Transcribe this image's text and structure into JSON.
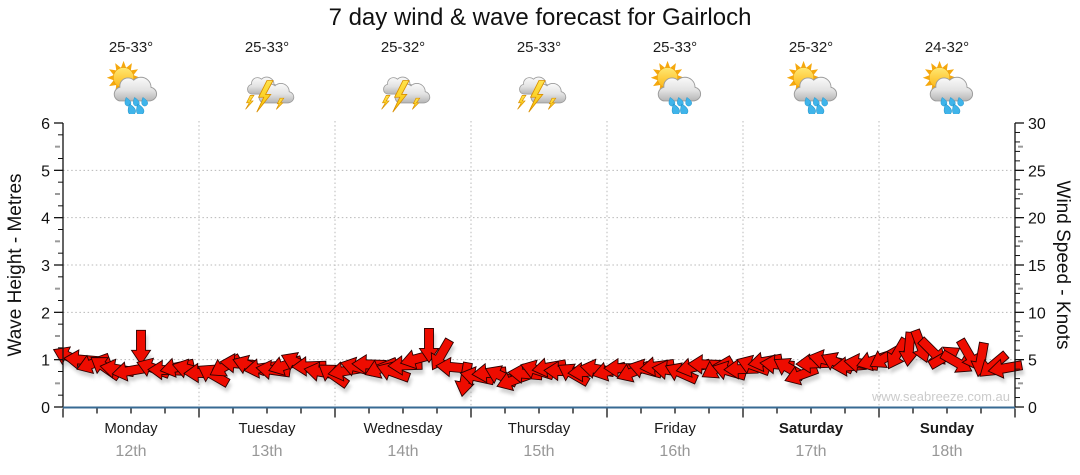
{
  "title": "7 day wind & wave forecast for Gairloch",
  "watermark": "www.seabreeze.com.au",
  "axes": {
    "left_label": "Wave Height - Metres",
    "right_label": "Wind Speed - Knots"
  },
  "forecast": {
    "days": [
      {
        "name": "Monday",
        "date": "12th",
        "temp": "25-33°",
        "icon": "sun-cloud-rain-icon",
        "icon_ref": "#sym-sun-cloud-rain",
        "name_class": "day-name"
      },
      {
        "name": "Tuesday",
        "date": "13th",
        "temp": "25-33°",
        "icon": "thunderstorm-icon",
        "icon_ref": "#sym-thunderstorm",
        "name_class": "day-name"
      },
      {
        "name": "Wednesday",
        "date": "14th",
        "temp": "25-32°",
        "icon": "thunderstorm-icon",
        "icon_ref": "#sym-thunderstorm",
        "name_class": "day-name"
      },
      {
        "name": "Thursday",
        "date": "15th",
        "temp": "25-33°",
        "icon": "thunderstorm-icon",
        "icon_ref": "#sym-thunderstorm",
        "name_class": "day-name"
      },
      {
        "name": "Friday",
        "date": "16th",
        "temp": "25-33°",
        "icon": "sun-cloud-rain-icon",
        "icon_ref": "#sym-sun-cloud-rain",
        "name_class": "day-name"
      },
      {
        "name": "Saturday",
        "date": "17th",
        "temp": "25-32°",
        "icon": "sun-cloud-rain-icon",
        "icon_ref": "#sym-sun-cloud-rain",
        "name_class": "day-name weekend"
      },
      {
        "name": "Sunday",
        "date": "18th",
        "temp": "24-32°",
        "icon": "sun-cloud-rain-icon",
        "icon_ref": "#sym-sun-cloud-rain",
        "name_class": "day-name weekend"
      }
    ]
  },
  "chart_data": {
    "type": "wind-arrow-series",
    "title": "7 day wind & wave forecast for Gairloch",
    "categories": [
      "Monday 12th",
      "Tuesday 13th",
      "Wednesday 14th",
      "Thursday 15th",
      "Friday 16th",
      "Saturday 17th",
      "Sunday 18th"
    ],
    "left_axis": {
      "label": "Wave Height - Metres",
      "min": 0,
      "max": 6,
      "ticks": [
        0,
        1,
        2,
        3,
        4,
        5,
        6
      ],
      "unit": "m"
    },
    "right_axis": {
      "label": "Wind Speed - Knots",
      "min": 0,
      "max": 30,
      "ticks": [
        0,
        5,
        10,
        15,
        20,
        25,
        30
      ],
      "unit": "kn"
    },
    "grid": true,
    "legend": false,
    "wind_arrows": {
      "points_per_day": 11.3,
      "speed_knots": [
        5.3,
        5.0,
        4.6,
        4.2,
        4.0,
        3.8,
        6.3,
        4.1,
        3.9,
        4.2,
        4.0,
        3.6,
        3.4,
        4.3,
        4.6,
        4.4,
        4.1,
        3.9,
        4.4,
        4.7,
        4.3,
        3.7,
        3.4,
        3.8,
        4.2,
        4.5,
        4.1,
        3.7,
        4.4,
        5.1,
        6.5,
        5.5,
        4.2,
        2.9,
        3.2,
        3.6,
        3.3,
        2.8,
        3.5,
        3.9,
        4.2,
        3.8,
        3.5,
        3.7,
        4.0,
        3.8,
        4.1,
        3.7,
        4.0,
        4.3,
        3.9,
        3.6,
        4.2,
        4.5,
        4.1,
        3.8,
        4.0,
        4.4,
        4.8,
        4.5,
        4.1,
        3.4,
        4.6,
        5.0,
        4.7,
        4.3,
        4.6,
        4.9,
        5.2,
        5.6,
        6.1,
        6.4,
        5.8,
        5.3,
        4.7,
        5.5,
        5.0,
        4.4,
        4.1
      ],
      "direction_deg": [
        205,
        185,
        160,
        215,
        190,
        170,
        90,
        200,
        182,
        168,
        195,
        178,
        210,
        150,
        185,
        200,
        172,
        188,
        162,
        205,
        178,
        190,
        215,
        170,
        195,
        182,
        158,
        200,
        178,
        165,
        90,
        120,
        185,
        100,
        192,
        175,
        205,
        160,
        185,
        198,
        170,
        182,
        210,
        176,
        190,
        165,
        180,
        158,
        195,
        172,
        188,
        204,
        168,
        182,
        150,
        196,
        178,
        200,
        170,
        185,
        210,
        160,
        178,
        192,
        205,
        175,
        188,
        162,
        150,
        120,
        95,
        70,
        45,
        330,
        30,
        60,
        100,
        140,
        170
      ]
    }
  },
  "colors": {
    "arrow_red": "#ee0c00",
    "arrow_outline": "#2a0000",
    "baseline_blue": "#376a93",
    "gridline": "#b8b8b8",
    "tick_gray": "#9a9a9a",
    "date_gray": "#979797",
    "watermark_gray": "#cbcbcb",
    "text_black": "#111111"
  }
}
